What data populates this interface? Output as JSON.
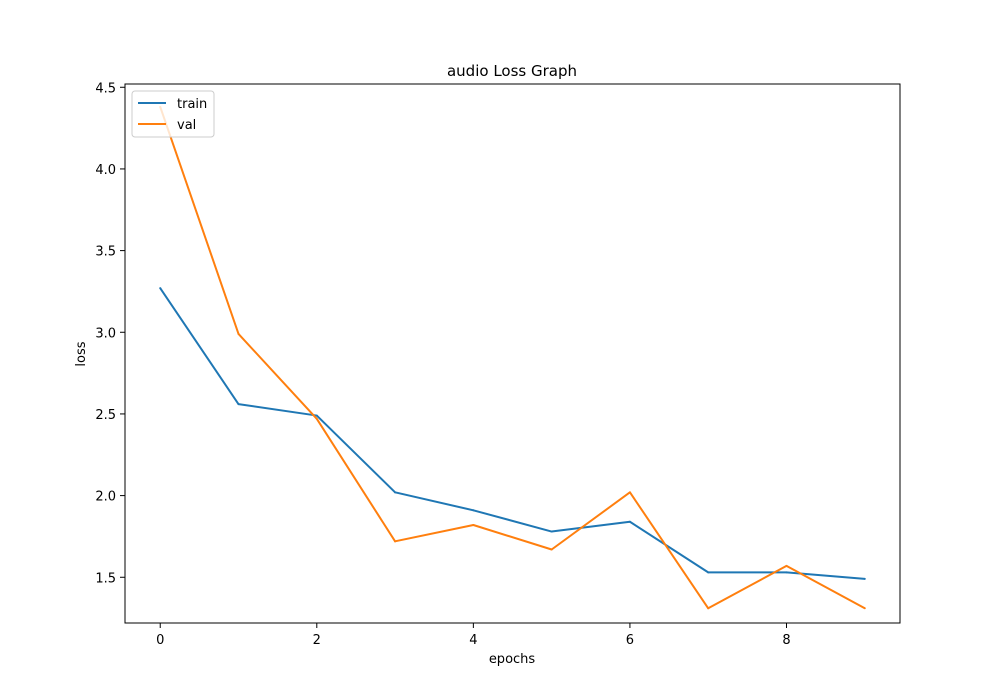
{
  "chart_data": {
    "type": "line",
    "title": "audio Loss Graph",
    "xlabel": "epochs",
    "ylabel": "loss",
    "xlim": [
      -0.45,
      9.45
    ],
    "ylim": [
      1.22,
      4.52
    ],
    "xticks": [
      0,
      2,
      4,
      6,
      8
    ],
    "xtick_labels": [
      "0",
      "2",
      "4",
      "6",
      "8"
    ],
    "yticks": [
      1.5,
      2.0,
      2.5,
      3.0,
      3.5,
      4.0,
      4.5
    ],
    "ytick_labels": [
      "1.5",
      "2.0",
      "2.5",
      "3.0",
      "3.5",
      "4.0",
      "4.5"
    ],
    "grid": false,
    "legend_position": "upper left",
    "x": [
      0,
      1,
      2,
      3,
      4,
      5,
      6,
      7,
      8,
      9
    ],
    "series": [
      {
        "name": "train",
        "color": "#1f77b4",
        "values": [
          3.27,
          2.56,
          2.49,
          2.02,
          1.91,
          1.78,
          1.84,
          1.53,
          1.53,
          1.49
        ]
      },
      {
        "name": "val",
        "color": "#ff7f0e",
        "values": [
          4.38,
          2.99,
          2.47,
          1.72,
          1.82,
          1.67,
          2.02,
          1.31,
          1.57,
          1.31
        ]
      }
    ]
  }
}
